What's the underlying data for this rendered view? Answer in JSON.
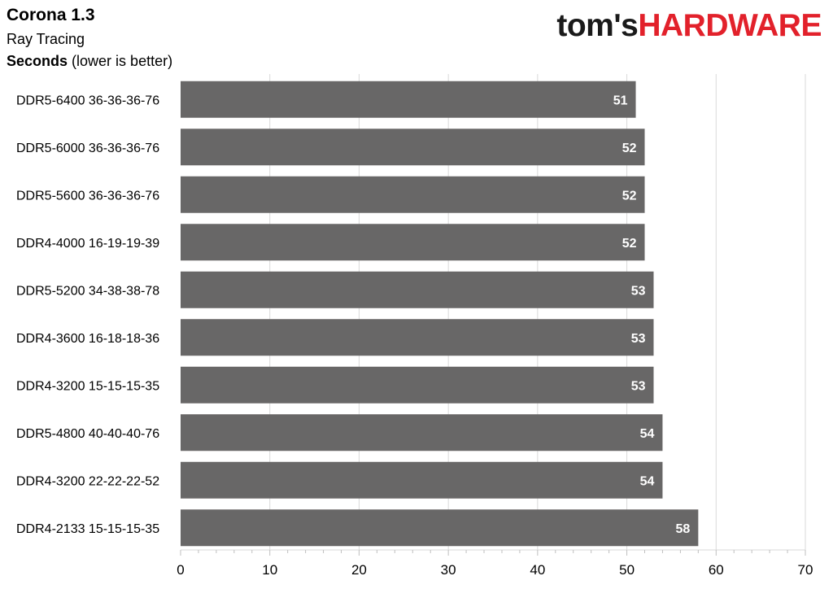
{
  "header": {
    "title": "Corona 1.3",
    "subtitle": "Ray Tracing",
    "metric_bold": "Seconds",
    "metric_note": "(lower is better)"
  },
  "logo": {
    "part1": "tom's",
    "part2": "HARDWARE"
  },
  "colors": {
    "bar": "#686767",
    "grid": "#d9d9d9",
    "label_inside": "#ffffff",
    "logo_red": "#e2212b"
  },
  "chart_data": {
    "type": "bar",
    "orientation": "horizontal",
    "categories": [
      "DDR5-6400 36-36-36-76",
      "DDR5-6000 36-36-36-76",
      "DDR5-5600 36-36-36-76",
      "DDR4-4000 16-19-19-39",
      "DDR5-5200 34-38-38-78",
      "DDR4-3600 16-18-18-36",
      "DDR4-3200 15-15-15-35",
      "DDR5-4800 40-40-40-76",
      "DDR4-3200 22-22-22-52",
      "DDR4-2133 15-15-15-35"
    ],
    "values": [
      51,
      52,
      52,
      52,
      53,
      53,
      53,
      54,
      54,
      58
    ],
    "data_labels": [
      "51",
      "52",
      "52",
      "52",
      "53",
      "53",
      "53",
      "54",
      "54",
      "58"
    ],
    "xlim": [
      0,
      70
    ],
    "xticks": [
      0,
      10,
      20,
      30,
      40,
      50,
      60,
      70
    ],
    "title": "Corona 1.3",
    "xlabel": "",
    "ylabel": "",
    "grid": true,
    "legend": "none"
  }
}
